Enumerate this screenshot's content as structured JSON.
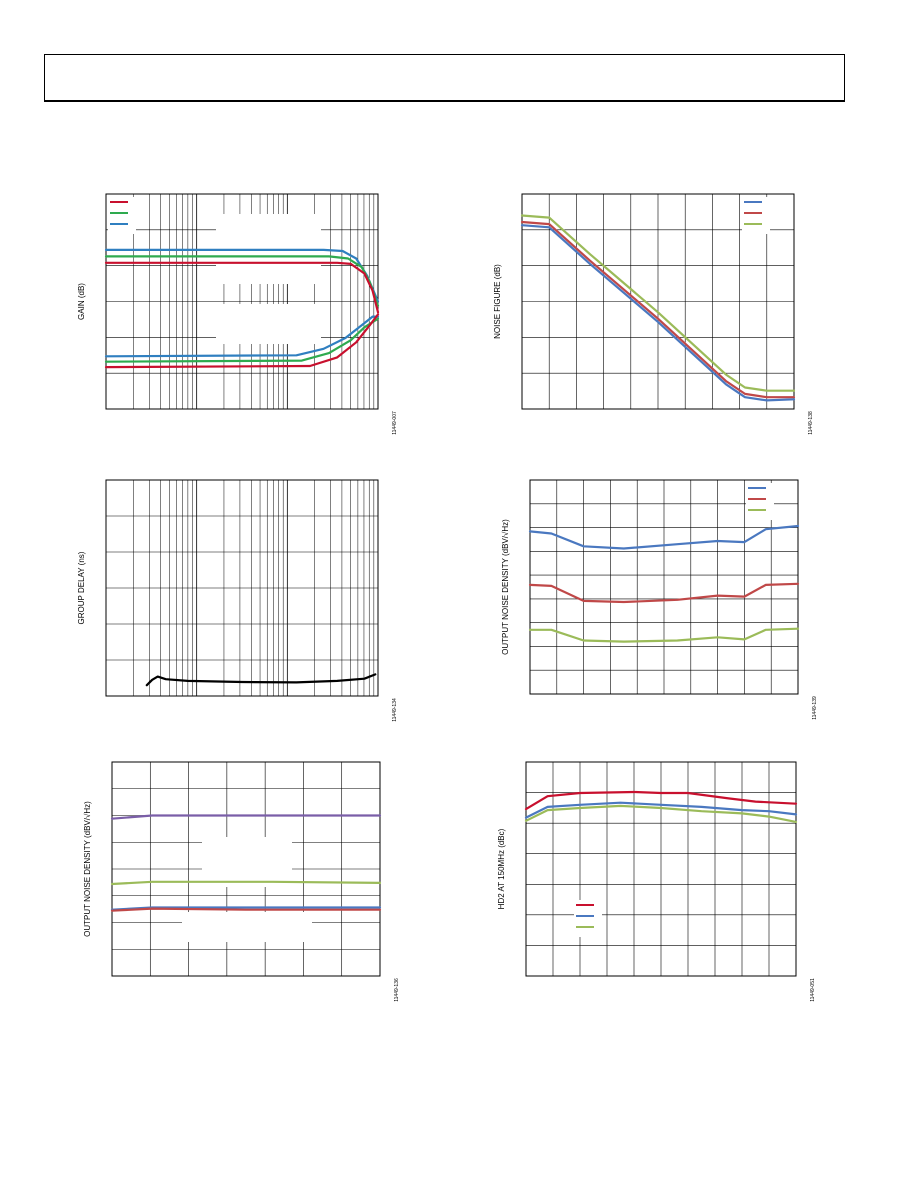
{
  "colors": {
    "red": "#c8102e",
    "green": "#2eaa4f",
    "blue": "#2f7fc0",
    "nf_blue": "#4a78c0",
    "nf_red": "#c04848",
    "nf_green": "#9bbb59",
    "purple": "#7a5ea8",
    "grid": "#000000"
  },
  "chart_data": [
    {
      "id": "gain",
      "type": "line",
      "ylabel": "GAIN (dB)",
      "xscale": "log",
      "grid": true,
      "figure_id": "11449-007",
      "legend": {
        "placement": "top-left",
        "entries": [
          {
            "color_key": "red"
          },
          {
            "color_key": "green"
          },
          {
            "color_key": "blue"
          }
        ]
      },
      "series": [
        {
          "color_key": "blue",
          "values": [
            [
              0.0,
              0.74
            ],
            [
              0.8,
              0.74
            ],
            [
              0.87,
              0.735
            ],
            [
              0.92,
              0.7
            ],
            [
              0.96,
              0.62
            ],
            [
              1.0,
              0.5
            ]
          ]
        },
        {
          "color_key": "green",
          "values": [
            [
              0.0,
              0.71
            ],
            [
              0.82,
              0.71
            ],
            [
              0.89,
              0.7
            ],
            [
              0.94,
              0.66
            ],
            [
              0.97,
              0.59
            ],
            [
              1.0,
              0.48
            ]
          ]
        },
        {
          "color_key": "red",
          "values": [
            [
              0.0,
              0.68
            ],
            [
              0.85,
              0.68
            ],
            [
              0.9,
              0.675
            ],
            [
              0.95,
              0.63
            ],
            [
              0.98,
              0.55
            ],
            [
              1.0,
              0.45
            ]
          ]
        },
        {
          "color_key": "blue",
          "values": [
            [
              0.0,
              0.245
            ],
            [
              0.7,
              0.25
            ],
            [
              0.8,
              0.28
            ],
            [
              0.88,
              0.33
            ],
            [
              0.94,
              0.39
            ],
            [
              0.98,
              0.43
            ],
            [
              1.0,
              0.43
            ]
          ]
        },
        {
          "color_key": "green",
          "values": [
            [
              0.0,
              0.22
            ],
            [
              0.72,
              0.225
            ],
            [
              0.82,
              0.26
            ],
            [
              0.9,
              0.32
            ],
            [
              0.95,
              0.38
            ],
            [
              1.0,
              0.42
            ]
          ]
        },
        {
          "color_key": "red",
          "values": [
            [
              0.0,
              0.195
            ],
            [
              0.75,
              0.2
            ],
            [
              0.85,
              0.24
            ],
            [
              0.92,
              0.31
            ],
            [
              0.97,
              0.39
            ],
            [
              1.0,
              0.44
            ]
          ]
        }
      ]
    },
    {
      "id": "noise-figure",
      "type": "line",
      "ylabel": "NOISE FIGURE (dB)",
      "xscale": "log",
      "grid": true,
      "figure_id": "11449-138",
      "legend": {
        "placement": "top-right",
        "entries": [
          {
            "color_key": "nf_blue"
          },
          {
            "color_key": "nf_red"
          },
          {
            "color_key": "nf_green"
          }
        ]
      },
      "series": [
        {
          "color_key": "nf_green",
          "values": [
            [
              0.0,
              0.9
            ],
            [
              0.1,
              0.89
            ],
            [
              0.25,
              0.72
            ],
            [
              0.5,
              0.45
            ],
            [
              0.75,
              0.16
            ],
            [
              0.82,
              0.1
            ],
            [
              0.9,
              0.085
            ],
            [
              1.0,
              0.085
            ]
          ]
        },
        {
          "color_key": "nf_red",
          "values": [
            [
              0.0,
              0.87
            ],
            [
              0.1,
              0.86
            ],
            [
              0.25,
              0.69
            ],
            [
              0.5,
              0.42
            ],
            [
              0.75,
              0.13
            ],
            [
              0.82,
              0.07
            ],
            [
              0.9,
              0.055
            ],
            [
              1.0,
              0.055
            ]
          ]
        },
        {
          "color_key": "nf_blue",
          "values": [
            [
              0.0,
              0.855
            ],
            [
              0.1,
              0.845
            ],
            [
              0.25,
              0.675
            ],
            [
              0.5,
              0.405
            ],
            [
              0.75,
              0.115
            ],
            [
              0.82,
              0.055
            ],
            [
              0.9,
              0.04
            ],
            [
              1.0,
              0.045
            ]
          ]
        }
      ]
    },
    {
      "id": "group-delay",
      "type": "line",
      "ylabel": "GROUP DELAY (ns)",
      "xscale": "log",
      "grid": true,
      "figure_id": "11449-134",
      "series": [
        {
          "color": "#000000",
          "values": [
            [
              0.15,
              0.05
            ],
            [
              0.17,
              0.075
            ],
            [
              0.19,
              0.09
            ],
            [
              0.22,
              0.078
            ],
            [
              0.3,
              0.07
            ],
            [
              0.5,
              0.065
            ],
            [
              0.7,
              0.063
            ],
            [
              0.85,
              0.07
            ],
            [
              0.95,
              0.08
            ],
            [
              0.99,
              0.1
            ]
          ]
        }
      ]
    },
    {
      "id": "output-noise-density-freq",
      "type": "line",
      "ylabel": "OUTPUT NOISE DENSITY (dBV/√Hz)",
      "grid": true,
      "figure_id": "11449-139",
      "legend": {
        "placement": "top-right",
        "entries": [
          {
            "color_key": "nf_blue"
          },
          {
            "color_key": "nf_red"
          },
          {
            "color_key": "nf_green"
          }
        ]
      },
      "series": [
        {
          "color_key": "nf_blue",
          "values": [
            [
              0.0,
              0.76
            ],
            [
              0.08,
              0.75
            ],
            [
              0.2,
              0.69
            ],
            [
              0.35,
              0.68
            ],
            [
              0.55,
              0.7
            ],
            [
              0.7,
              0.715
            ],
            [
              0.8,
              0.71
            ],
            [
              0.88,
              0.77
            ],
            [
              1.0,
              0.785
            ]
          ]
        },
        {
          "color_key": "nf_red",
          "values": [
            [
              0.0,
              0.51
            ],
            [
              0.08,
              0.505
            ],
            [
              0.2,
              0.435
            ],
            [
              0.35,
              0.43
            ],
            [
              0.55,
              0.44
            ],
            [
              0.7,
              0.46
            ],
            [
              0.8,
              0.455
            ],
            [
              0.88,
              0.51
            ],
            [
              1.0,
              0.515
            ]
          ]
        },
        {
          "color_key": "nf_green",
          "values": [
            [
              0.0,
              0.3
            ],
            [
              0.08,
              0.3
            ],
            [
              0.2,
              0.25
            ],
            [
              0.35,
              0.245
            ],
            [
              0.55,
              0.25
            ],
            [
              0.7,
              0.265
            ],
            [
              0.8,
              0.255
            ],
            [
              0.88,
              0.3
            ],
            [
              1.0,
              0.305
            ]
          ]
        }
      ]
    },
    {
      "id": "output-noise-density-2",
      "type": "line",
      "ylabel": "OUTPUT NOISE DENSITY (dBV/√Hz)",
      "grid": true,
      "figure_id": "11449-136",
      "series": [
        {
          "color_key": "purple",
          "values": [
            [
              0.0,
              0.735
            ],
            [
              0.15,
              0.75
            ],
            [
              1.0,
              0.75
            ]
          ]
        },
        {
          "color_key": "nf_green",
          "values": [
            [
              0.0,
              0.43
            ],
            [
              0.15,
              0.44
            ],
            [
              0.6,
              0.44
            ],
            [
              1.0,
              0.435
            ]
          ]
        },
        {
          "color_key": "nf_blue",
          "values": [
            [
              0.0,
              0.31
            ],
            [
              0.15,
              0.32
            ],
            [
              1.0,
              0.32
            ]
          ]
        },
        {
          "color_key": "nf_red",
          "values": [
            [
              0.0,
              0.305
            ],
            [
              0.15,
              0.315
            ],
            [
              0.5,
              0.31
            ],
            [
              1.0,
              0.31
            ]
          ]
        }
      ]
    },
    {
      "id": "hd2",
      "type": "line",
      "ylabel": "HD2 AT 150MHz (dBc)",
      "grid": true,
      "figure_id": "11449-051",
      "legend": {
        "placement": "bottom-left",
        "entries": [
          {
            "color_key": "red"
          },
          {
            "color_key": "nf_blue"
          },
          {
            "color_key": "nf_green"
          }
        ]
      },
      "series": [
        {
          "color_key": "red",
          "values": [
            [
              0.0,
              0.78
            ],
            [
              0.08,
              0.84
            ],
            [
              0.2,
              0.855
            ],
            [
              0.4,
              0.86
            ],
            [
              0.5,
              0.855
            ],
            [
              0.6,
              0.855
            ],
            [
              0.75,
              0.83
            ],
            [
              0.85,
              0.815
            ],
            [
              1.0,
              0.805
            ]
          ]
        },
        {
          "color_key": "nf_blue",
          "values": [
            [
              0.0,
              0.74
            ],
            [
              0.08,
              0.79
            ],
            [
              0.2,
              0.8
            ],
            [
              0.35,
              0.81
            ],
            [
              0.5,
              0.8
            ],
            [
              0.65,
              0.79
            ],
            [
              0.8,
              0.775
            ],
            [
              0.9,
              0.77
            ],
            [
              1.0,
              0.755
            ]
          ]
        },
        {
          "color_key": "nf_green",
          "values": [
            [
              0.0,
              0.725
            ],
            [
              0.08,
              0.775
            ],
            [
              0.2,
              0.785
            ],
            [
              0.35,
              0.795
            ],
            [
              0.5,
              0.785
            ],
            [
              0.65,
              0.77
            ],
            [
              0.8,
              0.76
            ],
            [
              0.9,
              0.745
            ],
            [
              1.0,
              0.72
            ]
          ]
        }
      ]
    }
  ]
}
